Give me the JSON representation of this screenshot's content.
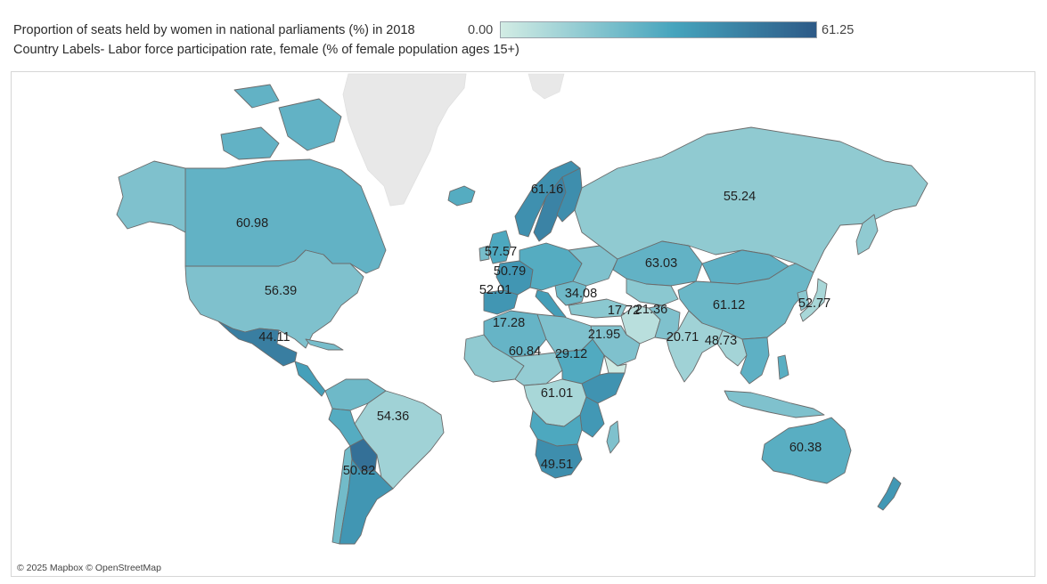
{
  "header": {
    "title": "Proportion of seats held by women in national parliaments (%) in 2018",
    "subtitle": "Country Labels- Labor force participation rate, female (% of female population ages 15+)"
  },
  "legend": {
    "min": "0.00",
    "max": "61.25",
    "color_low": "#d2ece4",
    "color_mid": "#46a4bd",
    "color_high": "#2d5a87"
  },
  "map": {
    "attribution": "© 2025 Mapbox © OpenStreetMap",
    "no_data_color": "#e8e8e8",
    "border_color": "#6b6b6b",
    "regions": [
      {
        "name": "Canada",
        "seats": 27,
        "label": "60.98"
      },
      {
        "name": "United States",
        "seats": 20,
        "label": "56.39"
      },
      {
        "name": "Mexico",
        "seats": 48,
        "label": "44.11"
      },
      {
        "name": "Brazil",
        "seats": 12,
        "label": "54.36"
      },
      {
        "name": "Argentina",
        "seats": 39,
        "label": "50.82"
      },
      {
        "name": "Bolivia",
        "seats": 53,
        "label": ""
      },
      {
        "name": "Sweden",
        "seats": 46,
        "label": "61.16"
      },
      {
        "name": "United Kingdom",
        "seats": 32,
        "label": "57.57"
      },
      {
        "name": "France",
        "seats": 39,
        "label": "50.79"
      },
      {
        "name": "Spain",
        "seats": 39,
        "label": "52.01"
      },
      {
        "name": "Algeria",
        "seats": 26,
        "label": "17.28"
      },
      {
        "name": "Turkey",
        "seats": 17,
        "label": "34.08"
      },
      {
        "name": "Saudi Arabia",
        "seats": 20,
        "label": "21.95"
      },
      {
        "name": "Iran",
        "seats": 6,
        "label": "17.72"
      },
      {
        "name": "Pakistan",
        "seats": 20,
        "label": "21.36"
      },
      {
        "name": "India",
        "seats": 12,
        "label": "20.71"
      },
      {
        "name": "Myanmar",
        "seats": 11,
        "label": "48.73"
      },
      {
        "name": "Russia",
        "seats": 16,
        "label": "55.24"
      },
      {
        "name": "Kazakhstan",
        "seats": 27,
        "label": "63.03"
      },
      {
        "name": "China",
        "seats": 25,
        "label": "61.12"
      },
      {
        "name": "Japan",
        "seats": 10,
        "label": "52.77"
      },
      {
        "name": "Chad",
        "seats": 15,
        "label": "60.84"
      },
      {
        "name": "Sudan",
        "seats": 31,
        "label": "29.12"
      },
      {
        "name": "Congo DR",
        "seats": 10,
        "label": "61.01"
      },
      {
        "name": "South Africa",
        "seats": 42,
        "label": "49.51"
      },
      {
        "name": "Australia",
        "seats": 29,
        "label": "60.38"
      }
    ]
  }
}
